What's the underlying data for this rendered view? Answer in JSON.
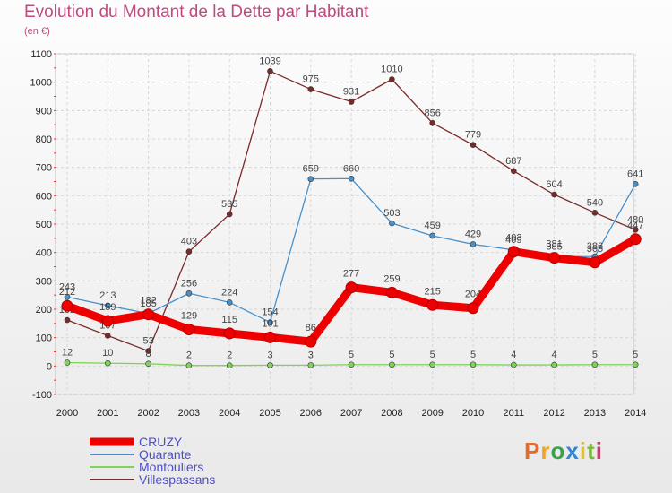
{
  "title": "Evolution du Montant de la Dette par Habitant",
  "subtitle": "(en €)",
  "logo": {
    "text": "Proxiti",
    "letter_colors": [
      "#e46b2c",
      "#f0a22c",
      "#3aa04a",
      "#2f86d4",
      "#e4c22c",
      "#7ab83a",
      "#d8356e"
    ]
  },
  "chart_data": {
    "type": "line",
    "x": [
      "2000",
      "2001",
      "2002",
      "2003",
      "2004",
      "2005",
      "2006",
      "2007",
      "2008",
      "2009",
      "2010",
      "2011",
      "2012",
      "2013",
      "2014"
    ],
    "ylim": [
      -100,
      1100
    ],
    "yticks": [
      -100,
      0,
      100,
      200,
      300,
      400,
      500,
      600,
      700,
      800,
      900,
      1000,
      1100
    ],
    "grid": true,
    "legend_position": "bottom-left",
    "series": [
      {
        "name": "Villespassans",
        "color": "#7a2a2a",
        "values": [
          162,
          107,
          53,
          403,
          535,
          1039,
          975,
          931,
          1010,
          856,
          779,
          687,
          604,
          540,
          480
        ]
      },
      {
        "name": "Quarante",
        "color": "#4a90c8",
        "values": [
          243,
          213,
          185,
          256,
          224,
          154,
          659,
          660,
          503,
          459,
          429,
          409,
          385,
          386,
          641
        ]
      },
      {
        "name": "Montouliers",
        "color": "#7fd35a",
        "values": [
          12,
          10,
          8,
          2,
          2,
          3,
          3,
          5,
          5,
          5,
          5,
          4,
          4,
          5,
          5
        ]
      },
      {
        "name": "CRUZY",
        "color": "#ee0000",
        "values": [
          212,
          159,
          182,
          129,
          115,
          101,
          86,
          277,
          259,
          215,
          204,
          403,
          381,
          365,
          447
        ]
      }
    ]
  }
}
